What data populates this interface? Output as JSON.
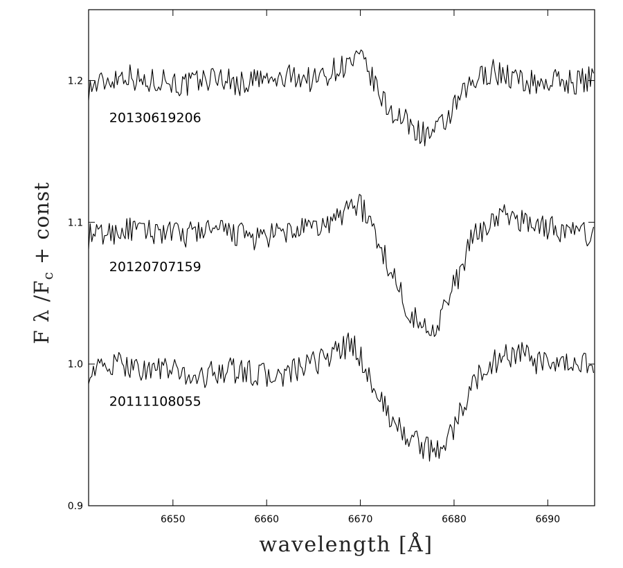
{
  "chart_data": {
    "type": "line",
    "title": "",
    "xlabel": "wavelength [Å]",
    "ylabel": "F λ /F",
    "ylabel_sub": "c",
    "ylabel_suffix": " + const",
    "xlim": [
      6641,
      6695
    ],
    "ylim": [
      0.9,
      1.25
    ],
    "xticks": [
      6650,
      6660,
      6670,
      6680,
      6690
    ],
    "yticks": [
      0.9,
      1.0,
      1.1,
      1.2
    ],
    "xtick_labels": [
      "6650",
      "6660",
      "6670",
      "6680",
      "6690"
    ],
    "ytick_labels": [
      "0.9",
      "1.0",
      "1.1",
      "1.2"
    ],
    "grid": false,
    "legend": "none",
    "series": [
      {
        "name": "20130619206",
        "x": [
          6641,
          6643,
          6645,
          6647,
          6649,
          6651,
          6653,
          6655,
          6657,
          6659,
          6661,
          6663,
          6665,
          6667,
          6668,
          6669,
          6670,
          6671,
          6672,
          6673,
          6674,
          6675,
          6676,
          6677,
          6678,
          6679,
          6680,
          6681,
          6682,
          6683,
          6684,
          6685,
          6687,
          6689,
          6691,
          6693,
          6695
        ],
        "values": [
          1.195,
          1.2,
          1.205,
          1.198,
          1.202,
          1.196,
          1.2,
          1.203,
          1.197,
          1.201,
          1.199,
          1.204,
          1.2,
          1.207,
          1.21,
          1.212,
          1.215,
          1.205,
          1.19,
          1.18,
          1.175,
          1.17,
          1.165,
          1.162,
          1.163,
          1.17,
          1.18,
          1.19,
          1.198,
          1.203,
          1.207,
          1.205,
          1.2,
          1.198,
          1.2,
          1.199,
          1.202
        ]
      },
      {
        "name": "20120707159",
        "x": [
          6641,
          6643,
          6645,
          6647,
          6649,
          6651,
          6653,
          6655,
          6657,
          6659,
          6661,
          6663,
          6665,
          6667,
          6668,
          6669,
          6670,
          6671,
          6672,
          6673,
          6674,
          6675,
          6676,
          6677,
          6678,
          6679,
          6680,
          6681,
          6682,
          6683,
          6684,
          6685,
          6687,
          6689,
          6691,
          6693,
          6695
        ],
        "values": [
          1.09,
          1.092,
          1.095,
          1.093,
          1.094,
          1.09,
          1.095,
          1.093,
          1.092,
          1.088,
          1.091,
          1.094,
          1.095,
          1.1,
          1.105,
          1.115,
          1.112,
          1.1,
          1.085,
          1.07,
          1.055,
          1.04,
          1.03,
          1.025,
          1.027,
          1.04,
          1.055,
          1.07,
          1.09,
          1.095,
          1.1,
          1.105,
          1.102,
          1.098,
          1.095,
          1.093,
          1.09
        ]
      },
      {
        "name": "20111108055",
        "x": [
          6641,
          6643,
          6645,
          6647,
          6649,
          6651,
          6653,
          6655,
          6657,
          6659,
          6661,
          6663,
          6665,
          6667,
          6668,
          6669,
          6670,
          6671,
          6672,
          6673,
          6674,
          6675,
          6676,
          6677,
          6678,
          6679,
          6680,
          6681,
          6682,
          6683,
          6684,
          6685,
          6687,
          6689,
          6691,
          6693,
          6695
        ],
        "values": [
          0.995,
          0.998,
          1.0,
          0.996,
          0.997,
          0.993,
          0.99,
          0.996,
          0.995,
          0.993,
          0.99,
          0.995,
          1.0,
          1.008,
          1.01,
          1.015,
          1.005,
          0.99,
          0.975,
          0.965,
          0.955,
          0.95,
          0.945,
          0.94,
          0.938,
          0.945,
          0.955,
          0.97,
          0.985,
          0.995,
          1.0,
          1.005,
          1.008,
          1.0,
          0.998,
          1.0,
          1.002
        ]
      }
    ]
  }
}
